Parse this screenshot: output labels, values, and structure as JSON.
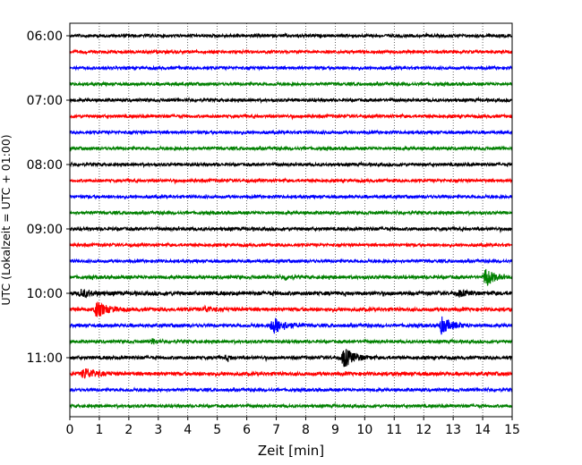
{
  "chart_data": {
    "type": "line",
    "title": "",
    "xlabel": "Zeit  [min]",
    "ylabel": "UTC (Lokalzeit = UTC + 01:00)",
    "xlim": [
      0,
      15
    ],
    "x_ticks": [
      0,
      1,
      2,
      3,
      4,
      5,
      6,
      7,
      8,
      9,
      10,
      11,
      12,
      13,
      14,
      15
    ],
    "y_tick_labels": [
      "06:00",
      "07:00",
      "08:00",
      "09:00",
      "10:00",
      "11:00"
    ],
    "grid": "vertical dotted at each minute",
    "trace_interval_min": 15,
    "first_trace": "06:00",
    "trace_colors": [
      "#000000",
      "#ff0000",
      "#0000ff",
      "#008000"
    ],
    "traces": [
      {
        "start": "06:00",
        "color": "#000000",
        "amplitude": 1.0,
        "events": []
      },
      {
        "start": "06:15",
        "color": "#ff0000",
        "amplitude": 1.0,
        "events": []
      },
      {
        "start": "06:30",
        "color": "#0000ff",
        "amplitude": 1.0,
        "events": []
      },
      {
        "start": "06:45",
        "color": "#008000",
        "amplitude": 1.0,
        "events": []
      },
      {
        "start": "07:00",
        "color": "#000000",
        "amplitude": 1.0,
        "events": []
      },
      {
        "start": "07:15",
        "color": "#ff0000",
        "amplitude": 1.0,
        "events": []
      },
      {
        "start": "07:30",
        "color": "#0000ff",
        "amplitude": 1.0,
        "events": []
      },
      {
        "start": "07:45",
        "color": "#008000",
        "amplitude": 1.0,
        "events": []
      },
      {
        "start": "08:00",
        "color": "#000000",
        "amplitude": 1.0,
        "events": []
      },
      {
        "start": "08:15",
        "color": "#ff0000",
        "amplitude": 1.0,
        "events": []
      },
      {
        "start": "08:30",
        "color": "#0000ff",
        "amplitude": 1.0,
        "events": []
      },
      {
        "start": "08:45",
        "color": "#008000",
        "amplitude": 1.0,
        "events": []
      },
      {
        "start": "09:00",
        "color": "#000000",
        "amplitude": 1.1,
        "events": []
      },
      {
        "start": "09:15",
        "color": "#ff0000",
        "amplitude": 1.0,
        "events": []
      },
      {
        "start": "09:30",
        "color": "#0000ff",
        "amplitude": 1.0,
        "events": []
      },
      {
        "start": "09:45",
        "color": "#008000",
        "amplitude": 1.1,
        "events": [
          {
            "t": 7.3,
            "amp": 3,
            "dur": 0.3
          },
          {
            "t": 14.1,
            "amp": 11,
            "dur": 0.6
          }
        ]
      },
      {
        "start": "10:00",
        "color": "#000000",
        "amplitude": 1.3,
        "events": [
          {
            "t": 0.4,
            "amp": 4,
            "dur": 0.8
          },
          {
            "t": 13.2,
            "amp": 3,
            "dur": 0.6
          }
        ]
      },
      {
        "start": "10:15",
        "color": "#ff0000",
        "amplitude": 1.2,
        "events": [
          {
            "t": 0.9,
            "amp": 8,
            "dur": 0.9
          },
          {
            "t": 4.6,
            "amp": 3,
            "dur": 0.5
          }
        ]
      },
      {
        "start": "10:30",
        "color": "#0000ff",
        "amplitude": 1.1,
        "events": [
          {
            "t": 6.9,
            "amp": 9,
            "dur": 0.9
          },
          {
            "t": 12.6,
            "amp": 9,
            "dur": 0.8
          }
        ]
      },
      {
        "start": "10:45",
        "color": "#008000",
        "amplitude": 1.0,
        "events": [
          {
            "t": 2.8,
            "amp": 3,
            "dur": 0.3
          }
        ]
      },
      {
        "start": "11:00",
        "color": "#000000",
        "amplitude": 1.1,
        "events": [
          {
            "t": 9.3,
            "amp": 11,
            "dur": 0.8
          },
          {
            "t": 5.3,
            "amp": 2.5,
            "dur": 0.4
          }
        ]
      },
      {
        "start": "11:15",
        "color": "#ff0000",
        "amplitude": 1.2,
        "events": [
          {
            "t": 0.5,
            "amp": 6,
            "dur": 0.9
          }
        ]
      },
      {
        "start": "11:30",
        "color": "#0000ff",
        "amplitude": 1.0,
        "events": []
      },
      {
        "start": "11:45",
        "color": "#008000",
        "amplitude": 1.0,
        "events": []
      }
    ]
  }
}
